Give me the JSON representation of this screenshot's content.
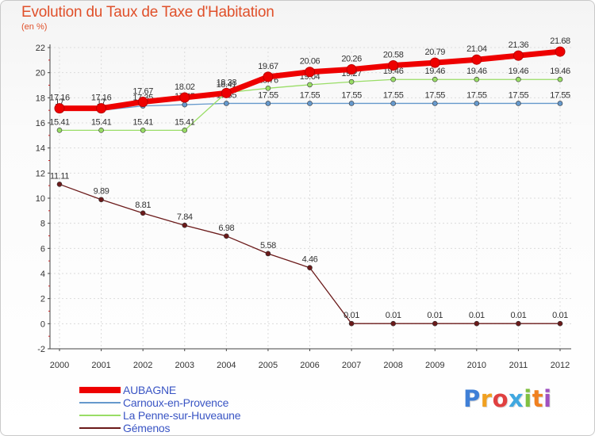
{
  "title": "Evolution du Taux de Taxe d'Habitation",
  "subtitle": "(en %)",
  "logo_text": "Proxiti",
  "chart_data": {
    "type": "line",
    "title": "Evolution du Taux de Taxe d'Habitation",
    "ylabel": "(en %)",
    "xlabel": "",
    "ylim": [
      -2,
      22
    ],
    "yticks": [
      -2,
      0,
      2,
      4,
      6,
      8,
      10,
      12,
      14,
      16,
      18,
      20,
      22
    ],
    "categories": [
      "2000",
      "2001",
      "2002",
      "2003",
      "2004",
      "2005",
      "2006",
      "2007",
      "2008",
      "2009",
      "2010",
      "2011",
      "2012"
    ],
    "grid": true,
    "legend_position": "bottom-left",
    "series": [
      {
        "name": "Gémenos",
        "color": "#6b1a1a",
        "values": [
          11.11,
          9.89,
          8.81,
          7.84,
          6.98,
          5.58,
          4.46,
          0.01,
          0.01,
          0.01,
          0.01,
          0.01,
          0.01
        ],
        "labels": [
          "11.11",
          "9.89",
          "8.81",
          "7.84",
          "6.98",
          "5.58",
          "4.46",
          "0.01",
          "0.01",
          "0.01",
          "0.01",
          "0.01",
          "0.01"
        ]
      },
      {
        "name": "Carnoux-en-Provence",
        "color": "#6699cc",
        "values": [
          17.0,
          17.0,
          17.35,
          17.45,
          17.55,
          17.55,
          17.55,
          17.55,
          17.55,
          17.55,
          17.55,
          17.55,
          17.55
        ],
        "labels": [
          "17",
          "17",
          "17.35",
          "17.45",
          "17.55",
          "17.55",
          "17.55",
          "17.55",
          "17.55",
          "17.55",
          "17.55",
          "17.55",
          "17.55"
        ]
      },
      {
        "name": "La Penne-sur-Huveaune",
        "color": "#99dd66",
        "values": [
          15.41,
          15.41,
          15.41,
          15.41,
          18.41,
          18.76,
          19.04,
          19.27,
          19.46,
          19.46,
          19.46,
          19.46,
          19.46
        ],
        "labels": [
          "15.41",
          "15.41",
          "15.41",
          "15.41",
          "18.41",
          "18.76",
          "19.04",
          "19.27",
          "19.46",
          "19.46",
          "19.46",
          "19.46",
          "19.46"
        ]
      },
      {
        "name": "AUBAGNE",
        "color": "#ee0000",
        "values": [
          17.16,
          17.16,
          17.67,
          18.02,
          18.38,
          19.67,
          20.06,
          20.26,
          20.58,
          20.79,
          21.04,
          21.36,
          21.68
        ],
        "labels": [
          "17.16",
          "17.16",
          "17.67",
          "18.02",
          "18.38",
          "19.67",
          "20.06",
          "20.26",
          "20.58",
          "20.79",
          "21.04",
          "21.36",
          "21.68"
        ]
      }
    ],
    "legend": [
      "AUBAGNE",
      "Carnoux-en-Provence",
      "La Penne-sur-Huveaune",
      "Gémenos"
    ]
  }
}
